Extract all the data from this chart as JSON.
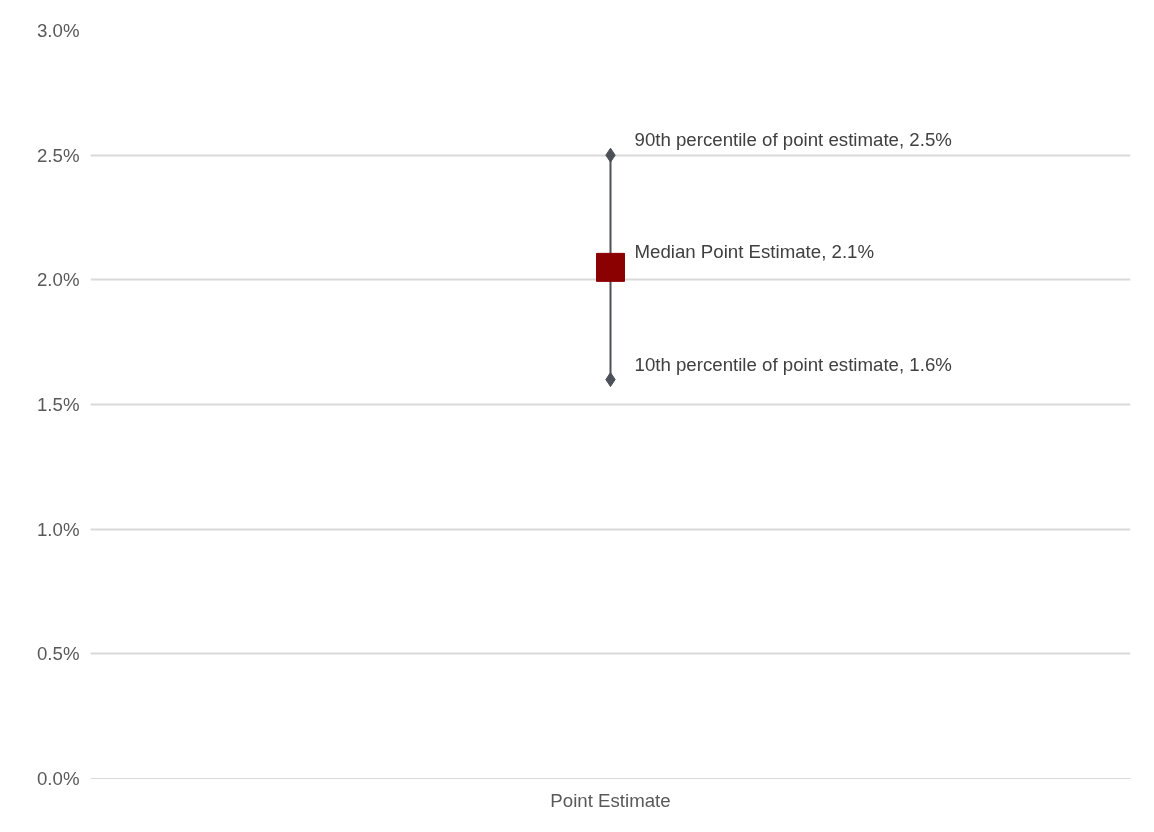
{
  "chart_data": {
    "type": "scatter",
    "categories": [
      "Point Estimate"
    ],
    "series": [
      {
        "type": "line",
        "marker": "diamond",
        "color": "#4d5157",
        "x": [
          "Point Estimate",
          "Point Estimate"
        ],
        "values": [
          1.6,
          2.5
        ],
        "value_labels": [
          "10th percentile of point estimate, 1.6%",
          "90th percentile of point estimate, 2.5%"
        ]
      },
      {
        "marker": "square",
        "color": "#8b0000",
        "values": [
          2.05
        ],
        "value_labels": [
          "Median Point Estimate, 2.1%"
        ]
      }
    ],
    "ylim": [
      0,
      3
    ],
    "yticks": [
      {
        "value": 0,
        "label": "0.0%"
      },
      {
        "value": 0.5,
        "label": "0.5%"
      },
      {
        "value": 1,
        "label": "1.0%"
      },
      {
        "value": 1.5,
        "label": "1.5%"
      },
      {
        "value": 2,
        "label": "2.0%"
      },
      {
        "value": 2.5,
        "label": "2.5%"
      },
      {
        "value": 3,
        "label": "3.0%"
      }
    ],
    "grid": "y"
  }
}
